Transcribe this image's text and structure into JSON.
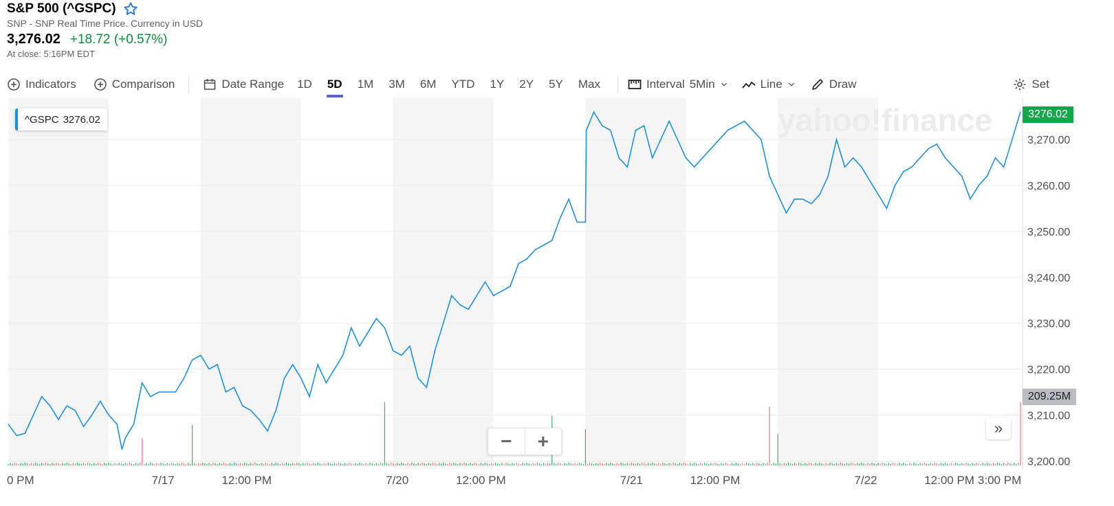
{
  "header": {
    "title": "S&P 500 (^GSPC)",
    "subtitle": "SNP - SNP Real Time Price. Currency in USD",
    "price": "3,276.02",
    "change": "+18.72 (+0.57%)",
    "close_note": "At close: 5:16PM EDT"
  },
  "toolbar": {
    "indicators": "Indicators",
    "comparison": "Comparison",
    "date_range": "Date Range",
    "ranges": [
      "1D",
      "5D",
      "1M",
      "3M",
      "6M",
      "YTD",
      "1Y",
      "2Y",
      "5Y",
      "Max"
    ],
    "active_range": "5D",
    "interval_label": "Interval",
    "interval_value": "5Min",
    "chart_type": "Line",
    "draw": "Draw",
    "settings": "Set"
  },
  "legend": {
    "symbol": "^GSPC",
    "value": "3276.02"
  },
  "price_tag": "3276.02",
  "volume_tag": "209.25M",
  "watermark": "yahoo!finance",
  "colors": {
    "line": "#1a8fe3",
    "up": "#11a84a",
    "down": "#e8616a",
    "shade": "#f5f5f5",
    "active_tab": "#5b5fd6"
  },
  "chart_data": {
    "type": "line",
    "x_labels": [
      "0 PM",
      "7/17",
      "12:00 PM",
      "7/20",
      "12:00 PM",
      "7/21",
      "12:00 PM",
      "7/22",
      "12:00 PM",
      "3:00 PM"
    ],
    "y_ticks": [
      "3,200.00",
      "3,210.00",
      "3,220.00",
      "3,230.00",
      "3,240.00",
      "3,250.00",
      "3,260.00",
      "3,270.00"
    ],
    "ylim": [
      3199,
      3279
    ],
    "sessions": [
      {
        "start": 0,
        "split": 12
      },
      {
        "start": 23,
        "split": 35
      },
      {
        "start": 46,
        "split": 58
      },
      {
        "start": 69,
        "split": 81
      },
      {
        "start": 92,
        "split": 104
      }
    ],
    "price_points": [
      [
        0,
        3208
      ],
      [
        1,
        3205.5
      ],
      [
        2,
        3206
      ],
      [
        3,
        3210
      ],
      [
        4,
        3214
      ],
      [
        5,
        3212
      ],
      [
        6,
        3209
      ],
      [
        7,
        3212
      ],
      [
        8,
        3211
      ],
      [
        9,
        3207.5
      ],
      [
        10,
        3210
      ],
      [
        11,
        3213
      ],
      [
        12,
        3210
      ],
      [
        13,
        3208
      ],
      [
        13.6,
        3202.5
      ],
      [
        14,
        3205
      ],
      [
        15,
        3208
      ],
      [
        16,
        3217
      ],
      [
        17,
        3214
      ],
      [
        18,
        3215
      ],
      [
        19,
        3215
      ],
      [
        20,
        3215
      ],
      [
        21,
        3218
      ],
      [
        22,
        3222
      ],
      [
        23,
        3223
      ],
      [
        24,
        3220
      ],
      [
        25,
        3221
      ],
      [
        26,
        3215
      ],
      [
        27,
        3216
      ],
      [
        28,
        3212
      ],
      [
        29,
        3211
      ],
      [
        30,
        3209
      ],
      [
        31,
        3206.5
      ],
      [
        32,
        3211
      ],
      [
        33,
        3218
      ],
      [
        34,
        3221
      ],
      [
        35,
        3218
      ],
      [
        36,
        3214
      ],
      [
        37,
        3221
      ],
      [
        38,
        3217
      ],
      [
        39,
        3220
      ],
      [
        40,
        3223
      ],
      [
        41,
        3229
      ],
      [
        42,
        3225
      ],
      [
        43,
        3228
      ],
      [
        44,
        3231
      ],
      [
        45,
        3229
      ],
      [
        46,
        3224
      ],
      [
        47,
        3223
      ],
      [
        48,
        3225
      ],
      [
        49,
        3218
      ],
      [
        50,
        3216
      ],
      [
        51,
        3224
      ],
      [
        52,
        3230
      ],
      [
        53,
        3236
      ],
      [
        54,
        3234
      ],
      [
        55,
        3233
      ],
      [
        56,
        3236
      ],
      [
        57,
        3239
      ],
      [
        58,
        3236
      ],
      [
        59,
        3237
      ],
      [
        60,
        3238
      ],
      [
        61,
        3243
      ],
      [
        62,
        3244
      ],
      [
        63,
        3246
      ],
      [
        64,
        3247
      ],
      [
        65,
        3248
      ],
      [
        66,
        3253
      ],
      [
        67,
        3257
      ],
      [
        68,
        3252
      ],
      [
        69,
        3252
      ],
      [
        69.1,
        3272
      ],
      [
        70,
        3276
      ],
      [
        71,
        3273
      ],
      [
        72,
        3272
      ],
      [
        73,
        3266
      ],
      [
        74,
        3264
      ],
      [
        75,
        3272
      ],
      [
        76,
        3273
      ],
      [
        77,
        3266
      ],
      [
        78,
        3270
      ],
      [
        79,
        3274
      ],
      [
        80,
        3270
      ],
      [
        81,
        3266
      ],
      [
        82,
        3264
      ],
      [
        83,
        3266
      ],
      [
        84,
        3268
      ],
      [
        85,
        3270
      ],
      [
        86,
        3272
      ],
      [
        87,
        3273
      ],
      [
        88,
        3274
      ],
      [
        89,
        3272
      ],
      [
        90,
        3270
      ],
      [
        91,
        3262
      ],
      [
        92,
        3258
      ],
      [
        93,
        3254
      ],
      [
        94,
        3257
      ],
      [
        95,
        3257
      ],
      [
        96,
        3256
      ],
      [
        97,
        3258
      ],
      [
        98,
        3262
      ],
      [
        99,
        3270
      ],
      [
        100,
        3264
      ],
      [
        101,
        3266
      ],
      [
        102,
        3264
      ],
      [
        103,
        3261
      ],
      [
        104,
        3258
      ],
      [
        105,
        3255
      ],
      [
        106,
        3260
      ],
      [
        107,
        3263
      ],
      [
        108,
        3264
      ],
      [
        109,
        3266
      ],
      [
        110,
        3268
      ],
      [
        111,
        3269
      ],
      [
        112,
        3266
      ],
      [
        113,
        3264
      ],
      [
        114,
        3262
      ],
      [
        115,
        3257
      ],
      [
        116,
        3260
      ],
      [
        117,
        3262
      ],
      [
        118,
        3266
      ],
      [
        119,
        3264
      ],
      [
        120,
        3270
      ],
      [
        121,
        3276.02
      ]
    ],
    "volume_spikes": [
      [
        16,
        12
      ],
      [
        22,
        18
      ],
      [
        45,
        28
      ],
      [
        65,
        22
      ],
      [
        69,
        16
      ],
      [
        91,
        26
      ],
      [
        92,
        14
      ],
      [
        121,
        28
      ]
    ]
  }
}
